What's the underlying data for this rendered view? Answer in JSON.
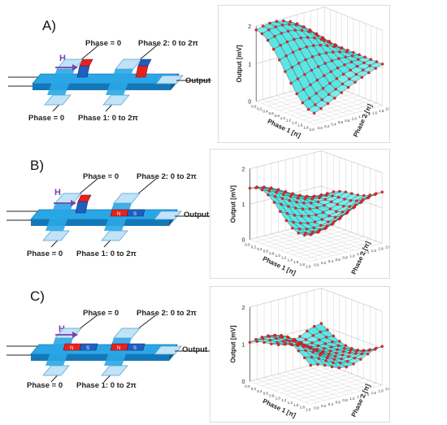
{
  "panels": [
    {
      "letter": "A)",
      "h_label": "H",
      "phase_top_left": "Phase = 0",
      "phase_top_right": "Phase 2: 0 to 2π",
      "phase_bottom_left": "Phase = 0",
      "phase_bottom_right": "Phase 1: 0 to 2π",
      "output_label": "Output",
      "magnet_orientation": "vertical-red-blue"
    },
    {
      "letter": "B)",
      "h_label": "H",
      "phase_top_left": "Phase = 0",
      "phase_top_right": "Phase 2: 0 to 2π",
      "phase_bottom_left": "Phase = 0",
      "phase_bottom_right": "Phase 1: 0 to 2π",
      "output_label": "Output",
      "magnet_orientation": "mixed",
      "magnet_text": [
        "N",
        "S"
      ]
    },
    {
      "letter": "C)",
      "h_label": "H",
      "phase_top_left": "Phase = 0",
      "phase_top_right": "Phase 2: 0 to 2π",
      "phase_bottom_left": "Phase = 0",
      "phase_bottom_right": "Phase 1: 0 to 2π",
      "output_label": "Output",
      "magnet_orientation": "horizontal-red-blue",
      "magnet_text": [
        "N",
        "S"
      ]
    }
  ],
  "plots": [
    {
      "zlabel": "Output [mV]",
      "xlabel": "Phase 1 [π]",
      "ylabel": "Phase 2 [π]",
      "z_ticks": [
        "0",
        "1",
        "2"
      ],
      "x_ticks": [
        "0.0",
        "0.2",
        "0.4",
        "0.6",
        "0.8",
        "1.0",
        "1.2",
        "1.4",
        "1.6",
        "1.8",
        "2.0"
      ],
      "y_ticks": [
        "0.0",
        "0.2",
        "0.4",
        "0.6",
        "0.8",
        "1.0",
        "1.2",
        "1.4",
        "1.6",
        "1.8",
        "2.0"
      ]
    },
    {
      "zlabel": "Output [mV]",
      "xlabel": "Phase 1 [π]",
      "ylabel": "Phase 2 [π]",
      "z_ticks": [
        "0",
        "1",
        "2"
      ],
      "x_ticks": [
        "0.0",
        "0.2",
        "0.4",
        "0.6",
        "0.8",
        "1.0",
        "1.2",
        "1.4",
        "1.6",
        "1.8",
        "2.0"
      ],
      "y_ticks": [
        "0.0",
        "0.2",
        "0.4",
        "0.6",
        "0.8",
        "1.0",
        "1.2",
        "1.4",
        "1.6",
        "1.8",
        "2.0"
      ]
    },
    {
      "zlabel": "Output [mV]",
      "xlabel": "Phase 1 [π]",
      "ylabel": "Phase 2 [π]",
      "z_ticks": [
        "0",
        "1",
        "2"
      ],
      "x_ticks": [
        "0.0",
        "0.2",
        "0.4",
        "0.6",
        "0.8",
        "1.0",
        "1.2",
        "1.4",
        "1.6",
        "1.8",
        "2.0"
      ],
      "y_ticks": [
        "0.0",
        "0.2",
        "0.4",
        "0.6",
        "0.8",
        "1.0",
        "1.2",
        "1.4",
        "1.6",
        "1.8",
        "2.0"
      ]
    }
  ],
  "colors": {
    "waveguide": "#2aa6e6",
    "waveguide_dark": "#1477b8",
    "waveguide_pad": "#bfe3f7",
    "magnet_red": "#e8211f",
    "magnet_blue": "#1f5fc2",
    "arrow_purple": "#7b3fb0",
    "surface": "#5fe3e3",
    "surface_dark": "#2aa0a0",
    "dot": "#e22a2a"
  }
}
